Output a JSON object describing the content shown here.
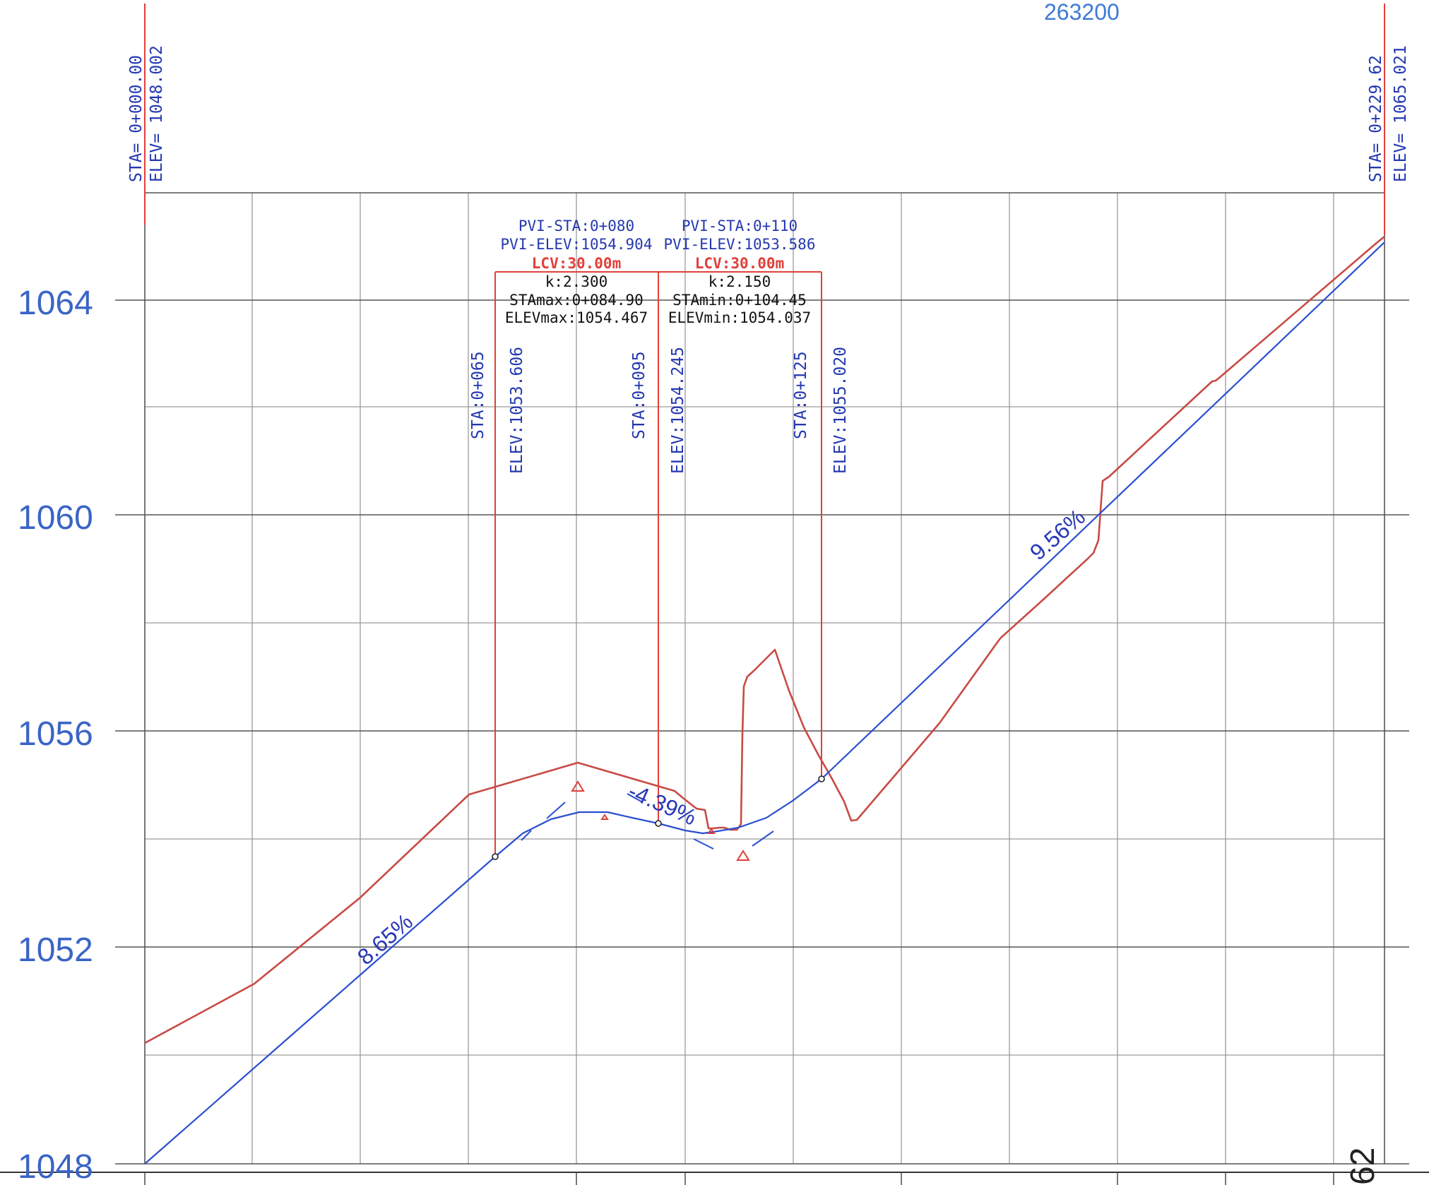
{
  "header": {
    "top_label": "263200"
  },
  "y_axis": {
    "ticks": [
      "1064",
      "1060",
      "1056",
      "1052",
      "1048"
    ]
  },
  "bottom": {
    "partial_label": "62"
  },
  "start_marker": {
    "sta": "STA=  0+000.00",
    "elev": "ELEV=  1048.002"
  },
  "end_marker": {
    "sta": "STA=  0+229.62",
    "elev": "ELEV=  1065.021"
  },
  "curve1": {
    "pvi_sta": "PVI-STA:0+080",
    "pvi_elev": "PVI-ELEV:1054.904",
    "lcv": "LCV:30.00m",
    "k": "k:2.300",
    "sta_ext": "STAmax:0+084.90",
    "elev_ext": "ELEVmax:1054.467"
  },
  "curve2": {
    "pvi_sta": "PVI-STA:0+110",
    "pvi_elev": "PVI-ELEV:1053.586",
    "lcv": "LCV:30.00m",
    "k": "k:2.150",
    "sta_ext": "STAmin:0+104.45",
    "elev_ext": "ELEVmin:1054.037"
  },
  "vertical_labels": [
    {
      "sta": "STA:0+065",
      "elev": "ELEV:1053.606"
    },
    {
      "sta": "STA:0+095",
      "elev": "ELEV:1054.245"
    },
    {
      "sta": "STA:0+125",
      "elev": "ELEV:1055.020"
    }
  ],
  "slopes": {
    "s1": "8.65%",
    "s2": "-4.39%",
    "s3": "9.56%"
  },
  "colors": {
    "terrain": "#c84a44",
    "grade": "#2a4fcf",
    "grid": "#9a9a9a",
    "labels": "#3a64c6",
    "annotation_box": "#e0403a"
  }
}
